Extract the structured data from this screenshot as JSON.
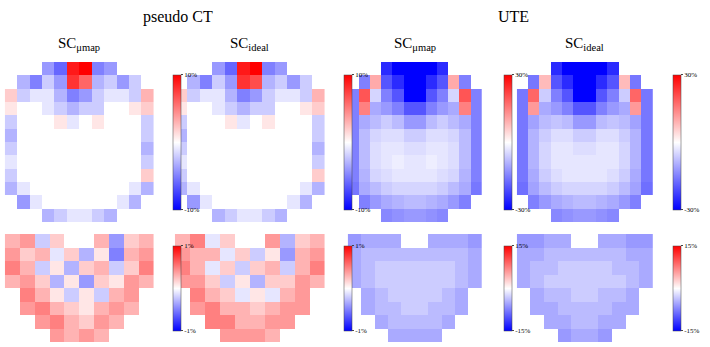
{
  "chart_data": [
    {
      "type": "heatmap",
      "group": "pseudo CT",
      "title": {
        "main": "SC",
        "subscript": "μmap"
      },
      "tick_labels": false,
      "colorbar": {
        "range": [
          -10,
          10
        ],
        "ticks": [
          {
            "value": -10,
            "label": "-10%"
          },
          {
            "value": 10,
            "label": "10%"
          }
        ]
      },
      "z": [
        [
          null,
          null,
          null,
          -4,
          -6,
          9,
          10,
          -5,
          -4,
          null,
          null,
          null
        ],
        [
          null,
          -3,
          -5,
          -2,
          -4,
          8,
          6,
          -3,
          -2,
          -4,
          -2,
          null
        ],
        [
          2,
          -2,
          -1,
          -1,
          -3,
          -5,
          -4,
          -2,
          -1,
          -1,
          -2,
          3
        ],
        [
          1,
          0,
          0,
          -1,
          -2,
          -3,
          -2,
          -2,
          0,
          0,
          1,
          2
        ],
        [
          -2,
          0,
          0,
          0,
          1,
          -1,
          0,
          1,
          0,
          0,
          0,
          -2
        ],
        [
          -3,
          0,
          0,
          0,
          0,
          0,
          0,
          0,
          0,
          0,
          0,
          -2
        ],
        [
          -2,
          0,
          0,
          0,
          0,
          0,
          0,
          0,
          0,
          0,
          0,
          -3
        ],
        [
          -1,
          0,
          0,
          0,
          0,
          0,
          0,
          0,
          0,
          0,
          0,
          -2
        ],
        [
          -2,
          0,
          0,
          0,
          0,
          0,
          0,
          0,
          0,
          0,
          0,
          2
        ],
        [
          -3,
          -1,
          0,
          0,
          0,
          0,
          0,
          0,
          0,
          0,
          -1,
          -3
        ],
        [
          null,
          -4,
          -1,
          0,
          0,
          0,
          0,
          0,
          0,
          -1,
          -3,
          null
        ],
        [
          null,
          null,
          null,
          -3,
          -2,
          -1,
          -1,
          -2,
          -3,
          null,
          null,
          null
        ]
      ]
    },
    {
      "type": "heatmap",
      "group": "pseudo CT",
      "title": {
        "main": "SC",
        "subscript": "ideal"
      },
      "tick_labels": false,
      "colorbar": {
        "range": [
          -10,
          10
        ],
        "ticks": [
          {
            "value": -10,
            "label": "-10%"
          },
          {
            "value": 10,
            "label": "10%"
          }
        ]
      },
      "z": [
        [
          null,
          null,
          null,
          -4,
          -6,
          9,
          10,
          -5,
          -4,
          null,
          null,
          null
        ],
        [
          null,
          -3,
          -5,
          -2,
          -4,
          8,
          7,
          -3,
          -2,
          -4,
          -2,
          null
        ],
        [
          2,
          -2,
          -1,
          -1,
          -3,
          -5,
          -4,
          -2,
          -1,
          -1,
          -2,
          3
        ],
        [
          1,
          0,
          0,
          -1,
          -2,
          -3,
          -2,
          -2,
          0,
          0,
          1,
          2
        ],
        [
          -2,
          0,
          0,
          0,
          1,
          -1,
          0,
          1,
          0,
          0,
          0,
          -2
        ],
        [
          -3,
          0,
          0,
          0,
          0,
          0,
          0,
          0,
          0,
          0,
          0,
          -2
        ],
        [
          -2,
          0,
          0,
          0,
          0,
          0,
          0,
          0,
          0,
          0,
          0,
          -3
        ],
        [
          -1,
          0,
          0,
          0,
          0,
          0,
          0,
          0,
          0,
          0,
          0,
          -2
        ],
        [
          -2,
          0,
          0,
          0,
          0,
          0,
          0,
          0,
          0,
          0,
          0,
          2
        ],
        [
          -3,
          -1,
          0,
          0,
          0,
          0,
          0,
          0,
          0,
          0,
          -1,
          -3
        ],
        [
          null,
          -4,
          -1,
          0,
          0,
          0,
          0,
          0,
          0,
          -1,
          -3,
          null
        ],
        [
          null,
          null,
          null,
          -3,
          -2,
          -1,
          -1,
          -2,
          -3,
          null,
          null,
          null
        ]
      ]
    },
    {
      "type": "heatmap",
      "group": "UTE",
      "title": {
        "main": "SC",
        "subscript": "μmap"
      },
      "tick_labels": false,
      "colorbar": {
        "range": [
          -30,
          30
        ],
        "ticks": [
          {
            "value": -30,
            "label": "-30%"
          },
          {
            "value": 30,
            "label": "30%"
          }
        ]
      },
      "z": [
        [
          null,
          null,
          null,
          -25,
          -30,
          -30,
          -30,
          -30,
          -25,
          null,
          null,
          null
        ],
        [
          null,
          -15,
          10,
          -20,
          -25,
          -30,
          -30,
          -25,
          -20,
          10,
          -15,
          null
        ],
        [
          -15,
          20,
          -5,
          -15,
          -20,
          -30,
          -30,
          -20,
          -15,
          -5,
          20,
          -15
        ],
        [
          -15,
          15,
          -10,
          -12,
          -15,
          -20,
          -20,
          -15,
          -12,
          -10,
          15,
          -15
        ],
        [
          -15,
          -10,
          -8,
          -6,
          -8,
          -12,
          -12,
          -8,
          -6,
          -8,
          -10,
          -15
        ],
        [
          -15,
          -8,
          -5,
          -4,
          -4,
          -6,
          -6,
          -4,
          -4,
          -5,
          -8,
          -15
        ],
        [
          -15,
          -8,
          -4,
          -3,
          -3,
          -4,
          -4,
          -3,
          -3,
          -4,
          -8,
          -15
        ],
        [
          -15,
          -8,
          -4,
          -3,
          -2,
          -3,
          -3,
          -2,
          -3,
          -4,
          -8,
          -15
        ],
        [
          -15,
          -9,
          -5,
          -4,
          -3,
          -3,
          -3,
          -3,
          -4,
          -5,
          -9,
          -15
        ],
        [
          -16,
          -10,
          -8,
          -6,
          -5,
          -5,
          -5,
          -5,
          -6,
          -8,
          -10,
          -16
        ],
        [
          null,
          -15,
          -12,
          -10,
          -9,
          -8,
          -8,
          -9,
          -10,
          -12,
          -15,
          null
        ],
        [
          null,
          null,
          null,
          -14,
          -13,
          -12,
          -12,
          -13,
          -14,
          null,
          null,
          null
        ]
      ]
    },
    {
      "type": "heatmap",
      "group": "UTE",
      "title": {
        "main": "SC",
        "subscript": "ideal"
      },
      "tick_labels": false,
      "colorbar": {
        "range": [
          -30,
          30
        ],
        "ticks": [
          {
            "value": -30,
            "label": "-30%"
          },
          {
            "value": 30,
            "label": "30%"
          }
        ]
      },
      "z": [
        [
          null,
          null,
          null,
          -25,
          -30,
          -30,
          -30,
          -30,
          -25,
          null,
          null,
          null
        ],
        [
          null,
          -16,
          8,
          -20,
          -25,
          -30,
          -30,
          -25,
          -20,
          8,
          -16,
          null
        ],
        [
          -16,
          18,
          -6,
          -15,
          -20,
          -30,
          -30,
          -20,
          -15,
          -6,
          18,
          -16
        ],
        [
          -16,
          12,
          -10,
          -12,
          -15,
          -20,
          -20,
          -15,
          -12,
          -10,
          12,
          -16
        ],
        [
          -16,
          -11,
          -8,
          -7,
          -8,
          -12,
          -12,
          -8,
          -7,
          -8,
          -11,
          -16
        ],
        [
          -16,
          -9,
          -6,
          -4,
          -4,
          -6,
          -6,
          -4,
          -4,
          -6,
          -9,
          -16
        ],
        [
          -16,
          -9,
          -5,
          -3,
          -3,
          -4,
          -4,
          -3,
          -3,
          -5,
          -9,
          -16
        ],
        [
          -16,
          -9,
          -5,
          -3,
          -3,
          -3,
          -3,
          -3,
          -3,
          -5,
          -9,
          -16
        ],
        [
          -16,
          -10,
          -6,
          -4,
          -3,
          -3,
          -3,
          -3,
          -4,
          -6,
          -10,
          -16
        ],
        [
          -17,
          -11,
          -8,
          -6,
          -5,
          -5,
          -5,
          -5,
          -6,
          -8,
          -11,
          -17
        ],
        [
          null,
          -15,
          -12,
          -10,
          -9,
          -8,
          -8,
          -9,
          -10,
          -12,
          -15,
          null
        ],
        [
          null,
          null,
          null,
          -14,
          -13,
          -12,
          -12,
          -13,
          -14,
          null,
          null,
          null
        ]
      ]
    },
    {
      "type": "heatmap",
      "group": "pseudo CT",
      "tick_labels": false,
      "colorbar": {
        "range": [
          -1,
          1
        ],
        "ticks": [
          {
            "value": -1,
            "label": "-1%"
          },
          {
            "value": 1,
            "label": "1%"
          }
        ]
      },
      "z": [
        [
          0.3,
          0.4,
          -0.2,
          0.2,
          null,
          null,
          0.3,
          -0.4,
          0.2,
          0.3
        ],
        [
          0.4,
          0.2,
          0.3,
          -0.1,
          0.2,
          -0.3,
          0.1,
          -0.5,
          0.3,
          0.4
        ],
        [
          0.5,
          0.3,
          -0.2,
          0.1,
          -0.3,
          0.2,
          0.3,
          -0.2,
          0.2,
          0.5
        ],
        [
          0.3,
          0.4,
          0.2,
          -0.3,
          0.1,
          -0.4,
          0.2,
          0.1,
          0.4,
          0.3
        ],
        [
          null,
          0.5,
          0.3,
          0.1,
          -0.2,
          0.1,
          -0.2,
          0.3,
          0.4,
          null
        ],
        [
          null,
          0.4,
          0.5,
          0.3,
          0.2,
          0.1,
          0.3,
          0.4,
          0.3,
          null
        ],
        [
          null,
          null,
          0.4,
          0.5,
          0.3,
          0.2,
          0.4,
          0.3,
          null,
          null
        ],
        [
          null,
          null,
          null,
          0.4,
          0.3,
          0.4,
          0.3,
          null,
          null,
          null
        ]
      ]
    },
    {
      "type": "heatmap",
      "group": "pseudo CT",
      "tick_labels": false,
      "colorbar": {
        "range": [
          -1,
          1
        ],
        "ticks": [
          {
            "value": -1,
            "label": "-1%"
          },
          {
            "value": 1,
            "label": "1%"
          }
        ]
      },
      "z": [
        [
          0.3,
          0.5,
          -0.1,
          0.2,
          null,
          null,
          0.4,
          -0.3,
          0.2,
          0.3
        ],
        [
          0.4,
          0.3,
          0.3,
          -0.1,
          0.2,
          -0.2,
          0.1,
          -0.4,
          0.3,
          0.4
        ],
        [
          0.5,
          0.3,
          -0.1,
          0.2,
          -0.2,
          0.2,
          0.3,
          -0.2,
          0.3,
          0.5
        ],
        [
          0.4,
          0.4,
          0.2,
          -0.2,
          0.1,
          -0.3,
          0.2,
          0.2,
          0.4,
          0.3
        ],
        [
          null,
          0.5,
          0.3,
          0.2,
          -0.1,
          0.1,
          -0.1,
          0.3,
          0.4,
          null
        ],
        [
          null,
          0.4,
          0.5,
          0.3,
          0.3,
          0.2,
          0.3,
          0.4,
          0.4,
          null
        ],
        [
          null,
          null,
          0.5,
          0.5,
          0.3,
          0.3,
          0.4,
          0.4,
          null,
          null
        ],
        [
          null,
          null,
          null,
          0.4,
          0.4,
          0.4,
          0.3,
          null,
          null,
          null
        ]
      ]
    },
    {
      "type": "heatmap",
      "group": "UTE",
      "tick_labels": false,
      "colorbar": {
        "range": [
          -15,
          15
        ],
        "ticks": [
          {
            "value": -15,
            "label": "-15%"
          },
          {
            "value": 15,
            "label": "15%"
          }
        ]
      },
      "z": [
        [
          -6,
          -5,
          -5,
          -5,
          null,
          null,
          -5,
          -5,
          -5,
          -6
        ],
        [
          -5,
          -4,
          -4,
          -4,
          -4,
          -4,
          -4,
          -4,
          -4,
          -5
        ],
        [
          -5,
          -4,
          -3,
          -3,
          -3,
          -3,
          -3,
          -3,
          -4,
          -5
        ],
        [
          -5,
          -4,
          -3,
          -3,
          -3,
          -3,
          -3,
          -3,
          -4,
          -5
        ],
        [
          null,
          -5,
          -4,
          -3,
          -3,
          -3,
          -3,
          -4,
          -5,
          null
        ],
        [
          null,
          -5,
          -4,
          -4,
          -3,
          -3,
          -4,
          -4,
          -5,
          null
        ],
        [
          null,
          null,
          -5,
          -4,
          -4,
          -4,
          -4,
          -5,
          null,
          null
        ],
        [
          null,
          null,
          null,
          -5,
          -5,
          -5,
          -5,
          null,
          null,
          null
        ]
      ]
    },
    {
      "type": "heatmap",
      "group": "UTE",
      "tick_labels": false,
      "colorbar": {
        "range": [
          -15,
          15
        ],
        "ticks": [
          {
            "value": -15,
            "label": "-15%"
          },
          {
            "value": 15,
            "label": "15%"
          }
        ]
      },
      "z": [
        [
          -6,
          -6,
          -5,
          -5,
          null,
          null,
          -5,
          -5,
          -6,
          -6
        ],
        [
          -5,
          -5,
          -4,
          -4,
          -4,
          -4,
          -4,
          -4,
          -5,
          -5
        ],
        [
          -5,
          -4,
          -4,
          -3,
          -3,
          -3,
          -3,
          -4,
          -4,
          -5
        ],
        [
          -5,
          -4,
          -3,
          -3,
          -3,
          -3,
          -3,
          -3,
          -4,
          -5
        ],
        [
          null,
          -5,
          -4,
          -4,
          -3,
          -3,
          -4,
          -4,
          -5,
          null
        ],
        [
          null,
          -5,
          -5,
          -4,
          -4,
          -4,
          -4,
          -5,
          -5,
          null
        ],
        [
          null,
          null,
          -5,
          -5,
          -4,
          -4,
          -5,
          -5,
          null,
          null
        ],
        [
          null,
          null,
          null,
          -6,
          -5,
          -5,
          -6,
          null,
          null,
          null
        ]
      ]
    }
  ]
}
